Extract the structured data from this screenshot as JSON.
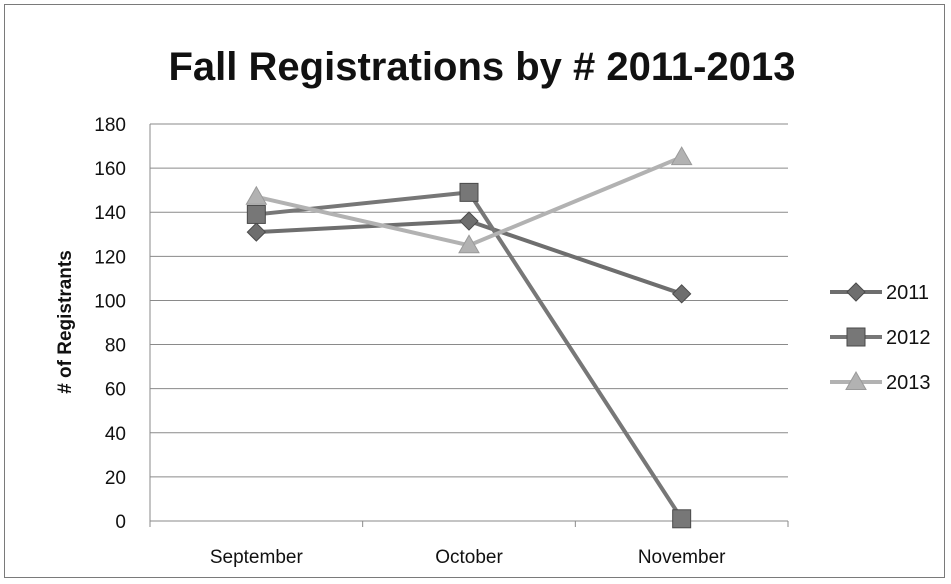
{
  "chart_data": {
    "type": "line",
    "title": "Fall Registrations by # 2011-2013",
    "xlabel": "",
    "ylabel": "# of Registrants",
    "categories": [
      "September",
      "October",
      "November"
    ],
    "ylim": [
      0,
      180
    ],
    "yticks": [
      0,
      20,
      40,
      60,
      80,
      100,
      120,
      140,
      160,
      180
    ],
    "grid": true,
    "legend_position": "right",
    "series": [
      {
        "name": "2011",
        "values": [
          131,
          136,
          103
        ],
        "marker": "diamond",
        "color": "#6e6e6e"
      },
      {
        "name": "2012",
        "values": [
          139,
          149,
          1
        ],
        "marker": "square",
        "color": "#777777"
      },
      {
        "name": "2013",
        "values": [
          147,
          125,
          165
        ],
        "marker": "triangle",
        "color": "#b2b2b2"
      }
    ]
  }
}
